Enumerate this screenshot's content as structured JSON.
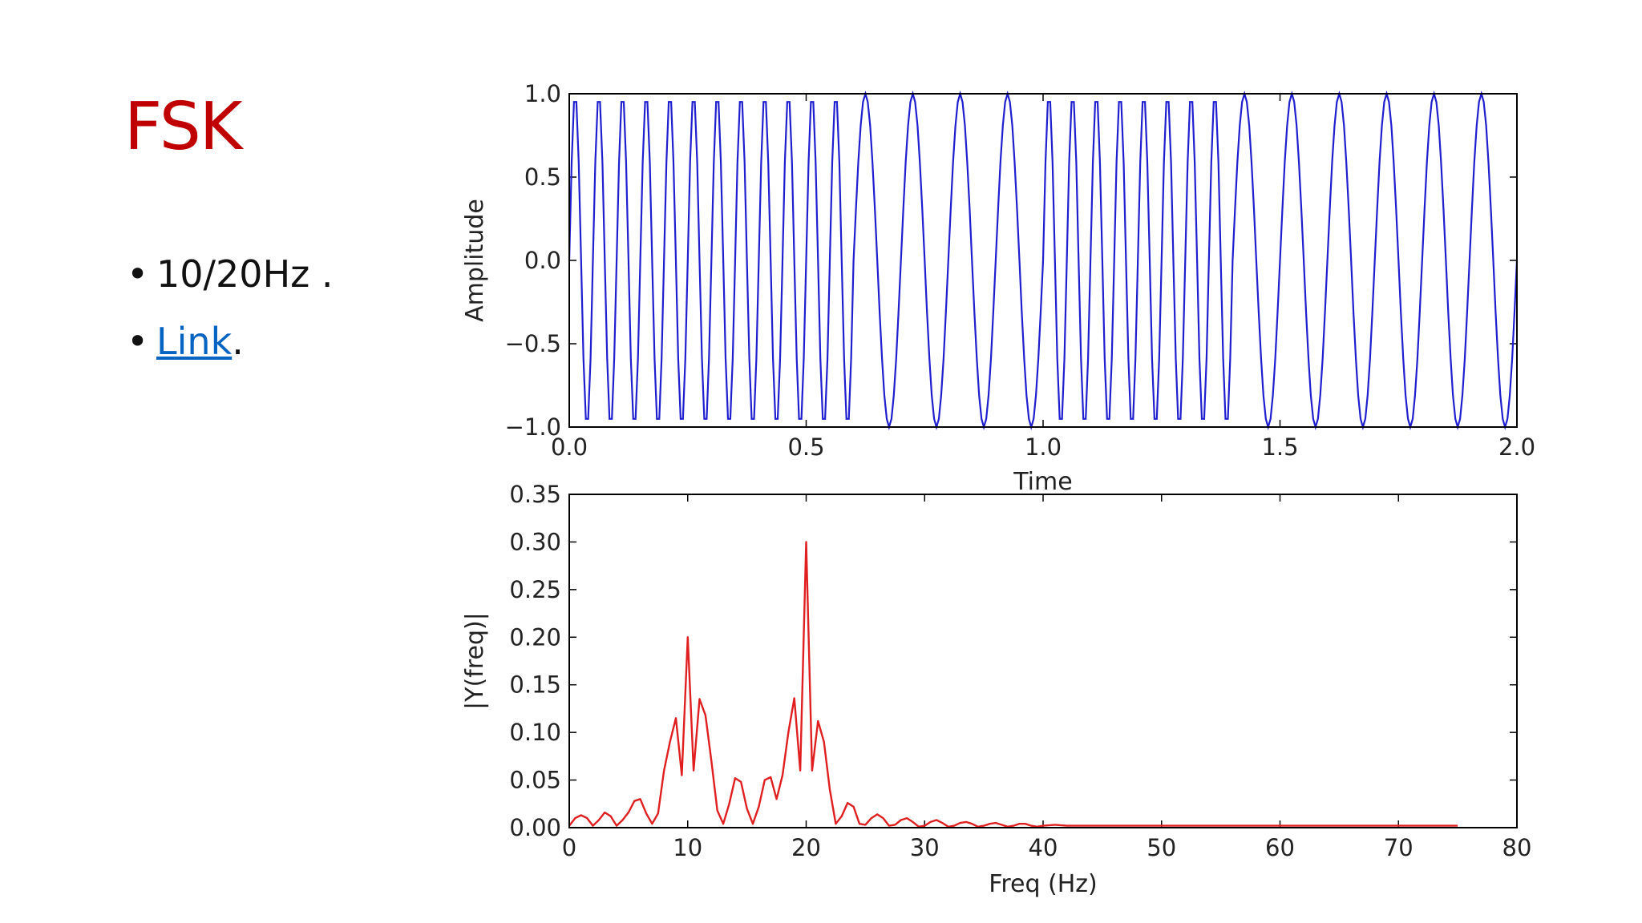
{
  "slide": {
    "title": "FSK",
    "title_color": "#c00000",
    "bullets": [
      {
        "text": "10/20Hz ."
      },
      {
        "link_text": "Link",
        "suffix": ".",
        "link_color": "#0563c1"
      }
    ]
  },
  "chart_data": [
    {
      "type": "line",
      "title": "",
      "xlabel": "Time",
      "ylabel": "Amplitude",
      "xlim": [
        0.0,
        2.0
      ],
      "ylim": [
        -1.0,
        1.0
      ],
      "xticks": [
        "0.0",
        "0.5",
        "1.0",
        "1.5",
        "2.0"
      ],
      "yticks": [
        "−1.0",
        "−0.5",
        "0.0",
        "0.5",
        "1.0"
      ],
      "grid": false,
      "color": "#1f1fd0",
      "signal": {
        "kind": "fsk",
        "bit_duration": 0.2,
        "segment_frequencies": [
          20,
          20,
          20,
          10,
          10,
          20,
          20,
          10,
          10,
          10
        ],
        "sample_rate": 200
      }
    },
    {
      "type": "line",
      "title": "",
      "xlabel": "Freq (Hz)",
      "ylabel": "|Y(freq)|",
      "xlim": [
        0,
        80
      ],
      "ylim": [
        0.0,
        0.35
      ],
      "xticks": [
        "0",
        "10",
        "20",
        "30",
        "40",
        "50",
        "60",
        "70",
        "80"
      ],
      "yticks": [
        "0.00",
        "0.05",
        "0.10",
        "0.15",
        "0.20",
        "0.25",
        "0.30",
        "0.35"
      ],
      "grid": false,
      "color": "#e02020",
      "x": [
        0,
        0.5,
        1,
        1.5,
        2,
        2.5,
        3,
        3.5,
        4,
        4.5,
        5,
        5.5,
        6,
        6.5,
        7,
        7.5,
        8,
        8.5,
        9,
        9.5,
        10,
        10.5,
        11,
        11.5,
        12,
        12.5,
        13,
        13.5,
        14,
        14.5,
        15,
        15.5,
        16,
        16.5,
        17,
        17.5,
        18,
        18.5,
        19,
        19.5,
        20,
        20.5,
        21,
        21.5,
        22,
        22.5,
        23,
        23.5,
        24,
        24.5,
        25,
        25.5,
        26,
        26.5,
        27,
        27.5,
        28,
        28.5,
        29,
        29.5,
        30,
        30.5,
        31,
        31.5,
        32,
        32.5,
        33,
        33.5,
        34,
        34.5,
        35,
        35.5,
        36,
        36.5,
        37,
        37.5,
        38,
        38.5,
        39,
        39.5,
        40,
        41,
        42,
        43,
        44,
        45,
        46,
        47,
        48,
        49,
        50,
        52,
        54,
        56,
        58,
        60,
        62,
        64,
        66,
        68,
        70,
        72,
        74,
        75
      ],
      "y": [
        0.002,
        0.01,
        0.013,
        0.01,
        0.002,
        0.008,
        0.016,
        0.012,
        0.002,
        0.008,
        0.016,
        0.028,
        0.03,
        0.015,
        0.004,
        0.015,
        0.06,
        0.09,
        0.115,
        0.055,
        0.2,
        0.06,
        0.135,
        0.118,
        0.07,
        0.018,
        0.004,
        0.025,
        0.052,
        0.048,
        0.02,
        0.004,
        0.022,
        0.05,
        0.053,
        0.03,
        0.055,
        0.1,
        0.136,
        0.06,
        0.3,
        0.06,
        0.112,
        0.09,
        0.04,
        0.004,
        0.012,
        0.026,
        0.022,
        0.004,
        0.003,
        0.01,
        0.014,
        0.01,
        0.002,
        0.003,
        0.008,
        0.01,
        0.006,
        0.001,
        0.002,
        0.006,
        0.008,
        0.005,
        0.001,
        0.002,
        0.005,
        0.006,
        0.004,
        0.001,
        0.002,
        0.004,
        0.005,
        0.003,
        0.001,
        0.002,
        0.004,
        0.004,
        0.002,
        0.001,
        0.002,
        0.003,
        0.002,
        0.002,
        0.002,
        0.002,
        0.002,
        0.002,
        0.002,
        0.002,
        0.002,
        0.002,
        0.002,
        0.002,
        0.002,
        0.002,
        0.002,
        0.002,
        0.002,
        0.002,
        0.002,
        0.002,
        0.002,
        0.002
      ]
    }
  ]
}
